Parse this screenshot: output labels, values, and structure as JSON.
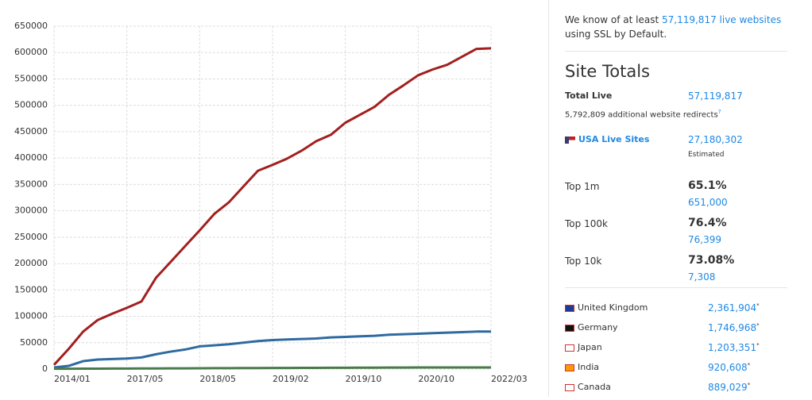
{
  "chart_data": {
    "type": "line",
    "categories": [
      "2014/01",
      null,
      null,
      null,
      null,
      "2017/05",
      null,
      null,
      null,
      null,
      "2018/05",
      null,
      null,
      null,
      null,
      "2019/02",
      null,
      null,
      null,
      null,
      "2019/10",
      null,
      null,
      null,
      null,
      "2020/10",
      null,
      null,
      null,
      null,
      "2022/03"
    ],
    "series": [
      {
        "color": "#a31f1f",
        "values": [
          8000,
          38000,
          71000,
          93000,
          105000,
          116000,
          128000,
          173000,
          203000,
          233000,
          263000,
          294000,
          316000,
          346000,
          376000,
          387000,
          399000,
          414000,
          432000,
          444000,
          467000,
          482000,
          497000,
          520000,
          538000,
          557000,
          568000,
          577000,
          592000,
          607000,
          608000
        ]
      },
      {
        "color": "#2f6aa0",
        "values": [
          3000,
          6000,
          15000,
          18000,
          19000,
          20000,
          22000,
          28000,
          33000,
          37000,
          43000,
          45000,
          47000,
          50000,
          53000,
          55000,
          56000,
          57000,
          58000,
          60000,
          61000,
          62000,
          63000,
          65000,
          66000,
          67000,
          68000,
          69000,
          70000,
          71000,
          71000
        ]
      },
      {
        "color": "#4a7a4a",
        "values": [
          500,
          600,
          700,
          800,
          900,
          1000,
          1100,
          1200,
          1300,
          1400,
          1500,
          1600,
          1700,
          1800,
          1900,
          2000,
          2100,
          2200,
          2300,
          2400,
          2500,
          2600,
          2700,
          2800,
          2900,
          3000,
          3000,
          3000,
          3000,
          3000,
          3000
        ]
      }
    ],
    "ylim": [
      0,
      650000
    ],
    "yticks": [
      0,
      50000,
      100000,
      150000,
      200000,
      250000,
      300000,
      350000,
      400000,
      450000,
      500000,
      550000,
      600000,
      650000
    ],
    "grid": true
  },
  "sidebar": {
    "intro": {
      "before": "We know of at least",
      "link": "57,119,817 live websites",
      "after": "using SSL by Default."
    },
    "title": "Site Totals",
    "total_live": {
      "label": "Total Live",
      "value": "57,119,817"
    },
    "redirects": {
      "text": "5,792,809 additional website redirects",
      "mark": "?"
    },
    "usa": {
      "label": "USA Live Sites",
      "value": "27,180,302",
      "note": "Estimated"
    },
    "tops": [
      {
        "label": "Top 1m",
        "percent": "65.1%",
        "count": "651,000"
      },
      {
        "label": "Top 100k",
        "percent": "76.4%",
        "count": "76,399"
      },
      {
        "label": "Top 10k",
        "percent": "73.08%",
        "count": "7,308"
      }
    ],
    "countries": [
      {
        "name": "United Kingdom",
        "value": "2,361,904",
        "mark": "*"
      },
      {
        "name": "Germany",
        "value": "1,746,968",
        "mark": "*"
      },
      {
        "name": "Japan",
        "value": "1,203,351",
        "mark": "*"
      },
      {
        "name": "India",
        "value": "920,608",
        "mark": "*"
      },
      {
        "name": "Canada",
        "value": "889,029",
        "mark": "*"
      }
    ]
  }
}
